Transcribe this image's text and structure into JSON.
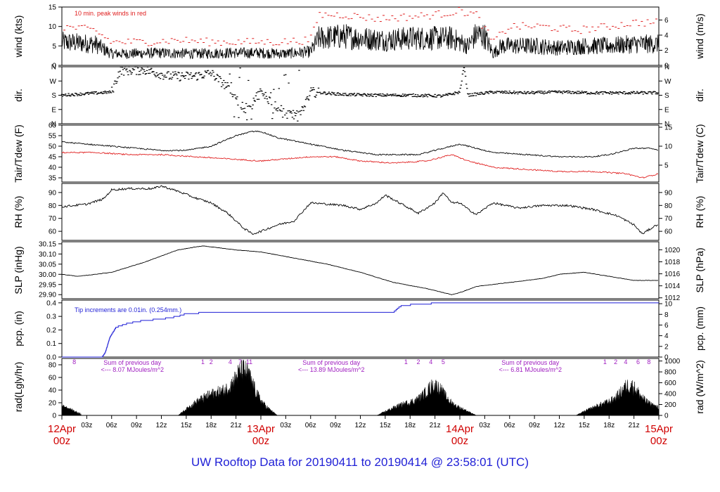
{
  "page_title": "UW Rooftop Data for 20190411  to  20190414 @ 23:58:01  (UTC)",
  "colors": {
    "black": "#000000",
    "peak_red": "#e02020",
    "dew_red": "#e02020",
    "precip_blue": "#1f1fd6",
    "annot_purple": "#a020c0",
    "date_red": "#d00000",
    "title_blue": "#1f1fd6"
  },
  "x_axis": {
    "tick_labels": [
      "03z",
      "06z",
      "09z",
      "12z",
      "15z",
      "18z",
      "21z",
      "03z",
      "06z",
      "09z",
      "12z",
      "15z",
      "18z",
      "21z",
      "03z",
      "06z",
      "09z",
      "12z",
      "15z",
      "18z",
      "21z"
    ],
    "tick_hours": [
      3,
      6,
      9,
      12,
      15,
      18,
      21,
      27,
      30,
      33,
      36,
      39,
      42,
      45,
      51,
      54,
      57,
      60,
      63,
      66,
      69
    ],
    "dates": [
      {
        "day": "12Apr",
        "hour": "00z",
        "at_hour": 0
      },
      {
        "day": "13Apr",
        "hour": "00z",
        "at_hour": 24
      },
      {
        "day": "14Apr",
        "hour": "00z",
        "at_hour": 48
      },
      {
        "day": "15Apr",
        "hour": "00z",
        "at_hour": 72
      }
    ]
  },
  "panels": [
    {
      "id": "wind",
      "left_label": "wind (kts)",
      "right_label": "wind (m/s)",
      "left_ticks": [
        "0",
        "5",
        "10",
        "15"
      ],
      "right_ticks": [
        "0",
        "2",
        "4",
        "6"
      ],
      "annotation": "10 min. peak winds in red"
    },
    {
      "id": "dir",
      "left_label": "dir.",
      "right_label": "dir.",
      "left_ticks": [
        "N",
        "E",
        "S",
        "W",
        "N"
      ],
      "right_ticks": [
        "N",
        "E",
        "S",
        "W",
        "N"
      ]
    },
    {
      "id": "temp",
      "left_label": "Tair/Tdew (F)",
      "right_label": "Tair/Tdew (C)",
      "left_ticks": [
        "35",
        "40",
        "45",
        "50",
        "55",
        "60"
      ],
      "right_ticks": [
        "5",
        "10",
        "15"
      ]
    },
    {
      "id": "rh",
      "left_label": "RH (%)",
      "right_label": "RH (%)",
      "left_ticks": [
        "60",
        "70",
        "80",
        "90"
      ],
      "right_ticks": [
        "60",
        "70",
        "80",
        "90"
      ]
    },
    {
      "id": "slp",
      "left_label": "SLP (inHg)",
      "right_label": "SLP (hPa)",
      "left_ticks": [
        "29.90",
        "29.95",
        "30.00",
        "30.05",
        "30.10",
        "30.15"
      ],
      "right_ticks": [
        "1012",
        "1014",
        "1016",
        "1018",
        "1020"
      ]
    },
    {
      "id": "pcp",
      "left_label": "pcp. (in)",
      "right_label": "pcp. (mm)",
      "left_ticks": [
        "0.0",
        "0.1",
        "0.2",
        "0.3",
        "0.4"
      ],
      "right_ticks": [
        "0",
        "2",
        "4",
        "6",
        "8",
        "10"
      ],
      "annotation": "Tip increments are 0.01in. (0.254mm.)"
    },
    {
      "id": "rad",
      "left_label": "rad(Lgly/hr)",
      "right_label": "rad (W/m^2)",
      "left_ticks": [
        "0",
        "20",
        "40",
        "60",
        "80"
      ],
      "right_ticks": [
        "0",
        "200",
        "400",
        "600",
        "800",
        "1000"
      ]
    }
  ],
  "radiation_notes": [
    {
      "line1": "Sum of previous day",
      "line2": "<--- 8.07 MJoules/m^2",
      "at_hour": 8.5
    },
    {
      "line1": "Sum of previous day",
      "line2": "<--- 13.89 MJoules/m^2",
      "at_hour": 32.5
    },
    {
      "line1": "Sum of previous day",
      "line2": "<--- 6.81 MJoules/m^2",
      "at_hour": 56.5
    }
  ],
  "uv_marks": [
    {
      "label": "8",
      "at_hour": 1.5
    },
    {
      "label": "1",
      "at_hour": 17.0
    },
    {
      "label": "2",
      "at_hour": 18.0
    },
    {
      "label": "4",
      "at_hour": 20.3
    },
    {
      "label": "7",
      "at_hour": 21.5
    },
    {
      "label": "11",
      "at_hour": 22.6
    },
    {
      "label": "1",
      "at_hour": 41.5
    },
    {
      "label": "2",
      "at_hour": 43.0
    },
    {
      "label": "4",
      "at_hour": 44.5
    },
    {
      "label": "5",
      "at_hour": 46.0
    },
    {
      "label": "1",
      "at_hour": 65.5
    },
    {
      "label": "2",
      "at_hour": 66.8
    },
    {
      "label": "4",
      "at_hour": 68.0
    },
    {
      "label": "6",
      "at_hour": 69.5
    },
    {
      "label": "8",
      "at_hour": 70.8
    }
  ],
  "chart_data": {
    "type": "line",
    "x_range_hours": [
      0,
      72
    ],
    "wind_kts": {
      "ylim": [
        0,
        15
      ],
      "mean": [
        [
          0,
          6
        ],
        [
          4,
          5.5
        ],
        [
          6,
          3
        ],
        [
          8,
          3
        ],
        [
          12,
          3.2
        ],
        [
          16,
          3
        ],
        [
          20,
          3.2
        ],
        [
          24,
          3.2
        ],
        [
          27,
          3
        ],
        [
          30,
          3.5
        ],
        [
          31,
          7
        ],
        [
          34,
          7.5
        ],
        [
          36,
          7
        ],
        [
          39,
          6.5
        ],
        [
          42,
          7
        ],
        [
          45,
          7
        ],
        [
          47,
          7
        ],
        [
          49,
          5
        ],
        [
          50,
          8
        ],
        [
          51,
          7.5
        ],
        [
          52,
          3
        ],
        [
          53,
          5
        ],
        [
          57,
          5
        ],
        [
          60,
          4.5
        ],
        [
          63,
          5
        ],
        [
          66,
          5
        ],
        [
          69,
          5.5
        ],
        [
          72,
          5.5
        ]
      ],
      "peak": [
        [
          0,
          10
        ],
        [
          4,
          9
        ],
        [
          6,
          6
        ],
        [
          10,
          6
        ],
        [
          14,
          6.5
        ],
        [
          18,
          6
        ],
        [
          22,
          6
        ],
        [
          26,
          6
        ],
        [
          30,
          6.5
        ],
        [
          31,
          13
        ],
        [
          34,
          13
        ],
        [
          38,
          12
        ],
        [
          42,
          12.5
        ],
        [
          45,
          13
        ],
        [
          48,
          14
        ],
        [
          50,
          13
        ],
        [
          52,
          6
        ],
        [
          54,
          10
        ],
        [
          58,
          10
        ],
        [
          62,
          9
        ],
        [
          66,
          10
        ],
        [
          69,
          11
        ],
        [
          72,
          11
        ]
      ]
    },
    "direction": {
      "ylim_deg": [
        0,
        360
      ],
      "values": [
        [
          0,
          180
        ],
        [
          6,
          200
        ],
        [
          7,
          335
        ],
        [
          10,
          340
        ],
        [
          13,
          300
        ],
        [
          16,
          300
        ],
        [
          18,
          320
        ],
        [
          20,
          230
        ],
        [
          22,
          90
        ],
        [
          24,
          200
        ],
        [
          27,
          60
        ],
        [
          29,
          90
        ],
        [
          30,
          200
        ],
        [
          34,
          185
        ],
        [
          38,
          180
        ],
        [
          42,
          180
        ],
        [
          46,
          175
        ],
        [
          48,
          200
        ],
        [
          48.5,
          360
        ],
        [
          49,
          180
        ],
        [
          52,
          200
        ],
        [
          56,
          195
        ],
        [
          60,
          200
        ],
        [
          64,
          195
        ],
        [
          68,
          195
        ],
        [
          72,
          195
        ]
      ]
    },
    "air_temp_f": {
      "ylim": [
        33,
        60
      ],
      "values": [
        [
          0,
          52
        ],
        [
          3,
          51
        ],
        [
          6,
          50
        ],
        [
          9,
          49
        ],
        [
          12,
          48
        ],
        [
          15,
          48
        ],
        [
          18,
          50
        ],
        [
          21,
          55
        ],
        [
          23,
          57
        ],
        [
          24,
          57
        ],
        [
          26,
          54
        ],
        [
          30,
          51
        ],
        [
          34,
          48
        ],
        [
          38,
          46
        ],
        [
          40,
          46
        ],
        [
          43,
          46
        ],
        [
          46,
          49
        ],
        [
          48,
          51
        ],
        [
          50,
          49
        ],
        [
          52,
          47
        ],
        [
          56,
          46
        ],
        [
          60,
          45
        ],
        [
          64,
          45
        ],
        [
          66,
          46
        ],
        [
          69,
          49
        ],
        [
          71,
          49
        ],
        [
          72,
          48
        ]
      ]
    },
    "dew_point_f": {
      "ylim": [
        33,
        60
      ],
      "values": [
        [
          0,
          47
        ],
        [
          4,
          47
        ],
        [
          8,
          46
        ],
        [
          12,
          46
        ],
        [
          16,
          45
        ],
        [
          20,
          44
        ],
        [
          24,
          43
        ],
        [
          27,
          44
        ],
        [
          30,
          45
        ],
        [
          33,
          45
        ],
        [
          36,
          43
        ],
        [
          40,
          42
        ],
        [
          44,
          43
        ],
        [
          47,
          46
        ],
        [
          49,
          43
        ],
        [
          52,
          40
        ],
        [
          56,
          39
        ],
        [
          60,
          38
        ],
        [
          64,
          38
        ],
        [
          68,
          37
        ],
        [
          70,
          35
        ],
        [
          72,
          37
        ]
      ]
    },
    "rh_pct": {
      "ylim": [
        53,
        97
      ],
      "values": [
        [
          0,
          79
        ],
        [
          3,
          81
        ],
        [
          5,
          85
        ],
        [
          6,
          92
        ],
        [
          8,
          93
        ],
        [
          11,
          93
        ],
        [
          12,
          95
        ],
        [
          14,
          91
        ],
        [
          16,
          86
        ],
        [
          18,
          82
        ],
        [
          20,
          74
        ],
        [
          22,
          62
        ],
        [
          23,
          58
        ],
        [
          24,
          60
        ],
        [
          26,
          65
        ],
        [
          28,
          68
        ],
        [
          29,
          75
        ],
        [
          30,
          82
        ],
        [
          32,
          81
        ],
        [
          34,
          80
        ],
        [
          36,
          77
        ],
        [
          38,
          82
        ],
        [
          39,
          88
        ],
        [
          41,
          81
        ],
        [
          43,
          74
        ],
        [
          45,
          82
        ],
        [
          46,
          90
        ],
        [
          47,
          82
        ],
        [
          48,
          82
        ],
        [
          49,
          77
        ],
        [
          50,
          73
        ],
        [
          52,
          82
        ],
        [
          55,
          78
        ],
        [
          58,
          80
        ],
        [
          61,
          80
        ],
        [
          64,
          77
        ],
        [
          67,
          72
        ],
        [
          69,
          65
        ],
        [
          70,
          58
        ],
        [
          71,
          62
        ],
        [
          72,
          66
        ]
      ]
    },
    "slp_inhg": {
      "ylim": [
        29.88,
        30.16
      ],
      "values": [
        [
          0,
          30.0
        ],
        [
          2,
          29.99
        ],
        [
          6,
          30.01
        ],
        [
          10,
          30.06
        ],
        [
          14,
          30.12
        ],
        [
          17,
          30.14
        ],
        [
          19,
          30.13
        ],
        [
          21,
          30.12
        ],
        [
          24,
          30.11
        ],
        [
          28,
          30.08
        ],
        [
          32,
          30.05
        ],
        [
          36,
          30.01
        ],
        [
          40,
          29.96
        ],
        [
          44,
          29.93
        ],
        [
          46,
          29.91
        ],
        [
          47,
          29.9
        ],
        [
          48,
          29.91
        ],
        [
          50,
          29.94
        ],
        [
          54,
          29.96
        ],
        [
          58,
          29.98
        ],
        [
          60,
          30.0
        ],
        [
          63,
          30.01
        ],
        [
          66,
          29.99
        ],
        [
          69,
          29.97
        ],
        [
          72,
          29.97
        ]
      ]
    },
    "precip_in": {
      "ylim": [
        0,
        0.42
      ],
      "values": [
        [
          0,
          0
        ],
        [
          4.8,
          0
        ],
        [
          5.2,
          0.03
        ],
        [
          5.8,
          0.15
        ],
        [
          6.5,
          0.22
        ],
        [
          8,
          0.25
        ],
        [
          10,
          0.27
        ],
        [
          12,
          0.28
        ],
        [
          14,
          0.3
        ],
        [
          15,
          0.32
        ],
        [
          18,
          0.33
        ],
        [
          36,
          0.33
        ],
        [
          40,
          0.33
        ],
        [
          40.5,
          0.36
        ],
        [
          41,
          0.38
        ],
        [
          43,
          0.39
        ],
        [
          46,
          0.4
        ],
        [
          72,
          0.4
        ]
      ]
    },
    "radiation_lgly_hr": {
      "ylim": [
        0,
        90
      ],
      "days": [
        {
          "start": 14.0,
          "end": 26.0,
          "peak": 80,
          "peak_hour": 22.0
        },
        {
          "start": 38.0,
          "end": 50.0,
          "peak": 50,
          "peak_hour": 45.0
        },
        {
          "start": 62.0,
          "end": 74.0,
          "peak": 50,
          "peak_hour": 68.5
        }
      ]
    }
  }
}
